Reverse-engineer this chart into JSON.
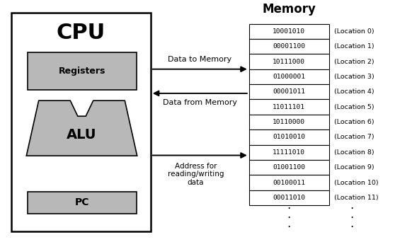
{
  "memory_title": "Memory",
  "cpu_label": "CPU",
  "registers_label": "Registers",
  "pc_label": "PC",
  "alu_label": "ALU",
  "memory_data": [
    "10001010",
    "00001100",
    "10111000",
    "01000001",
    "00001011",
    "11011101",
    "10110000",
    "01010010",
    "11111010",
    "01001100",
    "00100011",
    "00011010"
  ],
  "memory_locations": [
    "(Location 0)",
    "(Location 1)",
    "(Location 2)",
    "(Location 3)",
    "(Location 4)",
    "(Location 5)",
    "(Location 6)",
    "(Location 7)",
    "(Location 8)",
    "(Location 9)",
    "(Location 10)",
    "(Location 11)"
  ],
  "arrow1_label": "Data to Memory",
  "arrow2_label": "Data from Memory",
  "arrow3_label": "Address for\nreading/writing\ndata",
  "bg_color": "#ffffff",
  "box_fill": "#b8b8b8",
  "border_color": "#000000"
}
